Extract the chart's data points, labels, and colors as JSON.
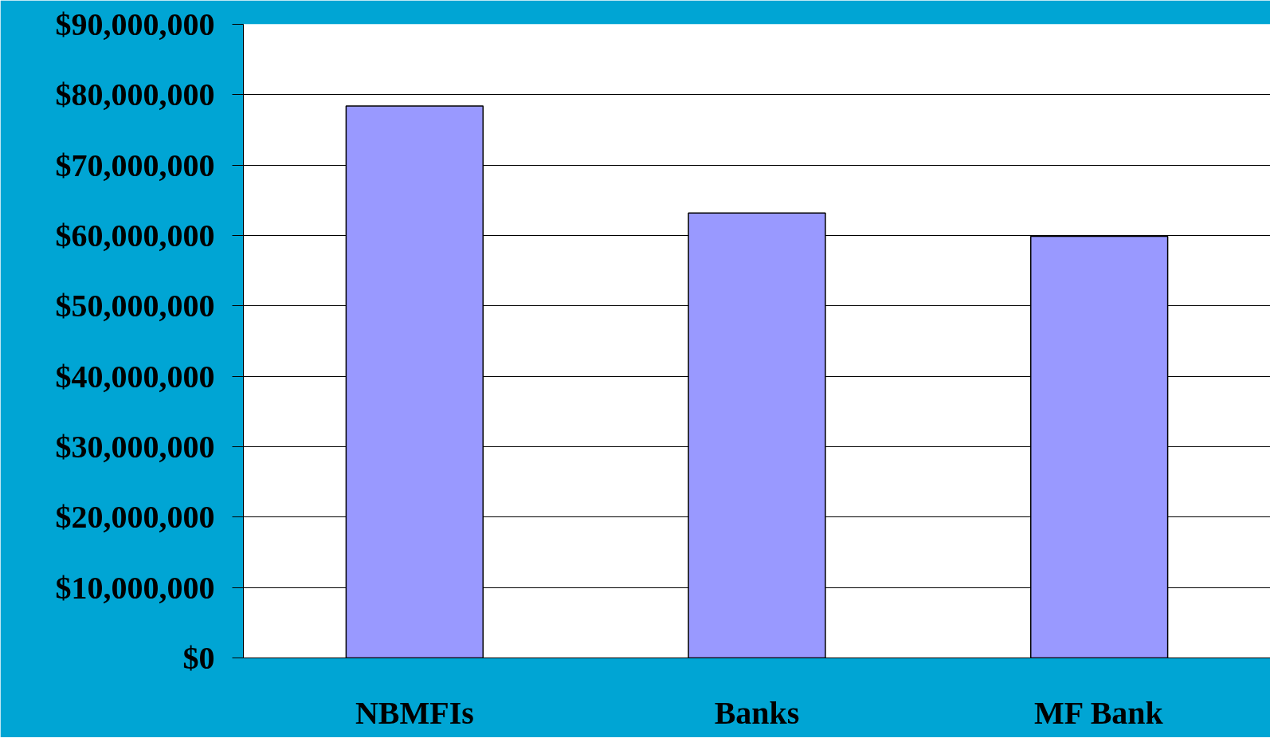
{
  "chart_data": {
    "type": "bar",
    "categories": [
      "NBMFIs",
      "Banks",
      "MF Bank"
    ],
    "values": [
      78400000,
      63200000,
      59900000
    ],
    "color": "#9999ff",
    "ylim": [
      0,
      90000000
    ],
    "yticks": [
      {
        "value": 0,
        "label": "$0"
      },
      {
        "value": 10000000,
        "label": "$10,000,000"
      },
      {
        "value": 20000000,
        "label": "$20,000,000"
      },
      {
        "value": 30000000,
        "label": "$30,000,000"
      },
      {
        "value": 40000000,
        "label": "$40,000,000"
      },
      {
        "value": 50000000,
        "label": "$50,000,000"
      },
      {
        "value": 60000000,
        "label": "$60,000,000"
      },
      {
        "value": 70000000,
        "label": "$70,000,000"
      },
      {
        "value": 80000000,
        "label": "$80,000,000"
      },
      {
        "value": 90000000,
        "label": "$90,000,000"
      }
    ],
    "grid": "y"
  }
}
